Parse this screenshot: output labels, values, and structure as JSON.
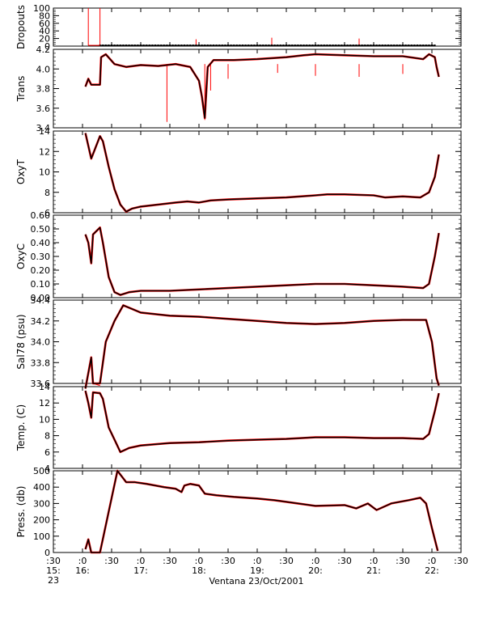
{
  "chart_data": {
    "type": "line",
    "xlabel": "Ventana 23/Oct/2001",
    "x_ticks": [
      {
        "t": 15.5,
        "top": ":30",
        "mid": "15:",
        "bot": "23"
      },
      {
        "t": 16.0,
        "top": ":0",
        "mid": "16:",
        "bot": ""
      },
      {
        "t": 16.5,
        "top": ":30",
        "mid": "",
        "bot": ""
      },
      {
        "t": 17.0,
        "top": ":0",
        "mid": "17:",
        "bot": ""
      },
      {
        "t": 17.5,
        "top": ":30",
        "mid": "",
        "bot": ""
      },
      {
        "t": 18.0,
        "top": ":0",
        "mid": "18:",
        "bot": ""
      },
      {
        "t": 18.5,
        "top": ":30",
        "mid": "",
        "bot": ""
      },
      {
        "t": 19.0,
        "top": ":0",
        "mid": "19:",
        "bot": ""
      },
      {
        "t": 19.5,
        "top": ":30",
        "mid": "",
        "bot": ""
      },
      {
        "t": 20.0,
        "top": ":0",
        "mid": "20:",
        "bot": ""
      },
      {
        "t": 20.5,
        "top": ":30",
        "mid": "",
        "bot": ""
      },
      {
        "t": 21.0,
        "top": ":0",
        "mid": "21:",
        "bot": ""
      },
      {
        "t": 21.5,
        "top": ":30",
        "mid": "",
        "bot": ""
      },
      {
        "t": 22.0,
        "top": ":0",
        "mid": "22:",
        "bot": ""
      },
      {
        "t": 22.5,
        "top": ":30",
        "mid": "",
        "bot": ""
      }
    ],
    "xlim": [
      15.5,
      22.5
    ],
    "series_colors": {
      "raw": "#ff0000",
      "processed": "#000000"
    },
    "panels": [
      {
        "ylabel": "Dropouts",
        "ylim": [
          0,
          100
        ],
        "ticks": [
          {
            "v": 0,
            "l": "0"
          },
          {
            "v": 20,
            "l": "20"
          },
          {
            "v": 40,
            "l": "40"
          },
          {
            "v": 60,
            "l": "60"
          },
          {
            "v": 80,
            "l": "80"
          },
          {
            "v": 100,
            "l": "100"
          }
        ],
        "baseline": 2,
        "spikes": [
          [
            16.1,
            100
          ],
          [
            16.3,
            100
          ],
          [
            17.95,
            18
          ],
          [
            19.25,
            22
          ],
          [
            20.75,
            20
          ]
        ],
        "marker_range": [
          16.3,
          22.05
        ]
      },
      {
        "ylabel": "Trans",
        "ylim": [
          3.4,
          4.2
        ],
        "ticks": [
          {
            "v": 3.4,
            "l": "3.4"
          },
          {
            "v": 3.6,
            "l": "3.6"
          },
          {
            "v": 3.8,
            "l": "3.8"
          },
          {
            "v": 4.0,
            "l": "4.0"
          },
          {
            "v": 4.2,
            "l": "4.2"
          }
        ],
        "points": [
          [
            16.05,
            3.82
          ],
          [
            16.1,
            3.9
          ],
          [
            16.15,
            3.84
          ],
          [
            16.3,
            3.84
          ],
          [
            16.32,
            4.12
          ],
          [
            16.4,
            4.15
          ],
          [
            16.55,
            4.05
          ],
          [
            16.75,
            4.02
          ],
          [
            17.0,
            4.04
          ],
          [
            17.3,
            4.03
          ],
          [
            17.6,
            4.05
          ],
          [
            17.85,
            4.02
          ],
          [
            18.0,
            3.88
          ],
          [
            18.05,
            3.72
          ],
          [
            18.1,
            3.5
          ],
          [
            18.15,
            4.02
          ],
          [
            18.25,
            4.09
          ],
          [
            18.6,
            4.09
          ],
          [
            19.0,
            4.1
          ],
          [
            19.5,
            4.12
          ],
          [
            19.8,
            4.14
          ],
          [
            20.0,
            4.15
          ],
          [
            20.5,
            4.14
          ],
          [
            21.0,
            4.13
          ],
          [
            21.5,
            4.13
          ],
          [
            21.85,
            4.1
          ],
          [
            21.95,
            4.15
          ],
          [
            22.05,
            4.12
          ],
          [
            22.08,
            4.02
          ],
          [
            22.12,
            3.92
          ]
        ],
        "raw_spikes": [
          [
            17.45,
            3.46
          ],
          [
            18.1,
            3.48
          ],
          [
            18.2,
            3.78
          ],
          [
            18.5,
            3.9
          ],
          [
            19.35,
            3.96
          ],
          [
            20.0,
            3.93
          ],
          [
            20.75,
            3.92
          ],
          [
            21.5,
            3.95
          ]
        ]
      },
      {
        "ylabel": "OxyT",
        "ylim": [
          6,
          14
        ],
        "ticks": [
          {
            "v": 6,
            "l": "6"
          },
          {
            "v": 8,
            "l": "8"
          },
          {
            "v": 10,
            "l": "10"
          },
          {
            "v": 12,
            "l": "12"
          },
          {
            "v": 14,
            "l": "14"
          }
        ],
        "points": [
          [
            16.05,
            13.8
          ],
          [
            16.15,
            11.3
          ],
          [
            16.3,
            13.5
          ],
          [
            16.35,
            13.0
          ],
          [
            16.45,
            10.5
          ],
          [
            16.55,
            8.3
          ],
          [
            16.65,
            6.8
          ],
          [
            16.75,
            6.1
          ],
          [
            16.85,
            6.4
          ],
          [
            17.0,
            6.6
          ],
          [
            17.3,
            6.8
          ],
          [
            17.6,
            7.0
          ],
          [
            17.8,
            7.1
          ],
          [
            18.0,
            7.0
          ],
          [
            18.2,
            7.2
          ],
          [
            18.5,
            7.3
          ],
          [
            19.0,
            7.4
          ],
          [
            19.5,
            7.5
          ],
          [
            20.0,
            7.7
          ],
          [
            20.2,
            7.8
          ],
          [
            20.5,
            7.8
          ],
          [
            21.0,
            7.7
          ],
          [
            21.2,
            7.5
          ],
          [
            21.5,
            7.6
          ],
          [
            21.8,
            7.5
          ],
          [
            21.95,
            8.0
          ],
          [
            22.05,
            9.5
          ],
          [
            22.12,
            11.7
          ]
        ],
        "raw_line": [
          [
            16.15,
            11.3
          ],
          [
            16.3,
            13.5
          ]
        ]
      },
      {
        "ylabel": "OxyC",
        "ylim": [
          0.0,
          0.6
        ],
        "ticks": [
          {
            "v": 0.0,
            "l": "0.00"
          },
          {
            "v": 0.1,
            "l": "0.10"
          },
          {
            "v": 0.2,
            "l": "0.20"
          },
          {
            "v": 0.3,
            "l": "0.30"
          },
          {
            "v": 0.4,
            "l": "0.40"
          },
          {
            "v": 0.5,
            "l": "0.50"
          },
          {
            "v": 0.6,
            "l": "0.60"
          }
        ],
        "points": [
          [
            16.05,
            0.46
          ],
          [
            16.1,
            0.4
          ],
          [
            16.15,
            0.25
          ],
          [
            16.18,
            0.46
          ],
          [
            16.3,
            0.51
          ],
          [
            16.35,
            0.4
          ],
          [
            16.45,
            0.15
          ],
          [
            16.55,
            0.04
          ],
          [
            16.65,
            0.02
          ],
          [
            16.8,
            0.04
          ],
          [
            17.0,
            0.05
          ],
          [
            17.5,
            0.05
          ],
          [
            18.0,
            0.06
          ],
          [
            18.5,
            0.07
          ],
          [
            19.0,
            0.08
          ],
          [
            19.5,
            0.09
          ],
          [
            20.0,
            0.1
          ],
          [
            20.5,
            0.1
          ],
          [
            21.0,
            0.09
          ],
          [
            21.5,
            0.08
          ],
          [
            21.85,
            0.07
          ],
          [
            21.95,
            0.1
          ],
          [
            22.05,
            0.3
          ],
          [
            22.12,
            0.47
          ]
        ],
        "raw_line": [
          [
            16.18,
            0.46
          ],
          [
            16.3,
            0.51
          ]
        ]
      },
      {
        "ylabel": "Sal78 (psu)",
        "ylim": [
          33.6,
          34.4
        ],
        "ticks": [
          {
            "v": 33.6,
            "l": "33.6"
          },
          {
            "v": 33.8,
            "l": "33.8"
          },
          {
            "v": 34.0,
            "l": "34.0"
          },
          {
            "v": 34.2,
            "l": "34.2"
          },
          {
            "v": 34.4,
            "l": "34.4"
          }
        ],
        "points": [
          [
            16.05,
            33.55
          ],
          [
            16.1,
            33.7
          ],
          [
            16.15,
            33.85
          ],
          [
            16.18,
            33.6
          ],
          [
            16.3,
            33.6
          ],
          [
            16.4,
            34.0
          ],
          [
            16.55,
            34.2
          ],
          [
            16.7,
            34.35
          ],
          [
            17.0,
            34.28
          ],
          [
            17.5,
            34.25
          ],
          [
            18.0,
            34.24
          ],
          [
            18.5,
            34.22
          ],
          [
            19.0,
            34.2
          ],
          [
            19.5,
            34.18
          ],
          [
            20.0,
            34.17
          ],
          [
            20.5,
            34.18
          ],
          [
            21.0,
            34.2
          ],
          [
            21.5,
            34.21
          ],
          [
            21.9,
            34.21
          ],
          [
            22.0,
            34.0
          ],
          [
            22.08,
            33.65
          ],
          [
            22.12,
            33.58
          ]
        ],
        "raw_line": [
          [
            16.18,
            33.6
          ],
          [
            16.3,
            33.58
          ]
        ]
      },
      {
        "ylabel": "Temp. (C)",
        "ylim": [
          4,
          14
        ],
        "ticks": [
          {
            "v": 4,
            "l": "4"
          },
          {
            "v": 6,
            "l": "6"
          },
          {
            "v": 8,
            "l": "8"
          },
          {
            "v": 10,
            "l": "10"
          },
          {
            "v": 12,
            "l": "12"
          },
          {
            "v": 14,
            "l": "14"
          }
        ],
        "points": [
          [
            16.05,
            13.5
          ],
          [
            16.1,
            12.0
          ],
          [
            16.15,
            10.2
          ],
          [
            16.18,
            13.3
          ],
          [
            16.3,
            13.2
          ],
          [
            16.35,
            12.5
          ],
          [
            16.45,
            9.0
          ],
          [
            16.55,
            7.5
          ],
          [
            16.65,
            6.0
          ],
          [
            16.8,
            6.5
          ],
          [
            17.0,
            6.8
          ],
          [
            17.5,
            7.1
          ],
          [
            18.0,
            7.2
          ],
          [
            18.5,
            7.4
          ],
          [
            19.0,
            7.5
          ],
          [
            19.5,
            7.6
          ],
          [
            20.0,
            7.8
          ],
          [
            20.5,
            7.8
          ],
          [
            21.0,
            7.7
          ],
          [
            21.5,
            7.7
          ],
          [
            21.85,
            7.6
          ],
          [
            21.95,
            8.2
          ],
          [
            22.05,
            11.0
          ],
          [
            22.12,
            13.2
          ]
        ],
        "raw_line": [
          [
            16.18,
            13.3
          ],
          [
            16.3,
            13.3
          ]
        ]
      },
      {
        "ylabel": "Press. (db)",
        "ylim": [
          0,
          500
        ],
        "ticks": [
          {
            "v": 0,
            "l": "0"
          },
          {
            "v": 100,
            "l": "100"
          },
          {
            "v": 200,
            "l": "200"
          },
          {
            "v": 300,
            "l": "300"
          },
          {
            "v": 400,
            "l": "400"
          },
          {
            "v": 500,
            "l": "500"
          }
        ],
        "points": [
          [
            16.05,
            20
          ],
          [
            16.1,
            80
          ],
          [
            16.15,
            0
          ],
          [
            16.3,
            0
          ],
          [
            16.45,
            250
          ],
          [
            16.6,
            500
          ],
          [
            16.75,
            430
          ],
          [
            16.9,
            430
          ],
          [
            17.1,
            420
          ],
          [
            17.4,
            400
          ],
          [
            17.6,
            390
          ],
          [
            17.7,
            370
          ],
          [
            17.75,
            410
          ],
          [
            17.85,
            420
          ],
          [
            18.0,
            410
          ],
          [
            18.1,
            360
          ],
          [
            18.3,
            350
          ],
          [
            18.6,
            340
          ],
          [
            19.0,
            330
          ],
          [
            19.3,
            320
          ],
          [
            19.7,
            300
          ],
          [
            20.0,
            285
          ],
          [
            20.5,
            290
          ],
          [
            20.7,
            270
          ],
          [
            20.9,
            300
          ],
          [
            21.05,
            260
          ],
          [
            21.3,
            300
          ],
          [
            21.6,
            320
          ],
          [
            21.8,
            335
          ],
          [
            21.9,
            300
          ],
          [
            22.0,
            150
          ],
          [
            22.1,
            10
          ]
        ],
        "raw_line": []
      }
    ]
  }
}
